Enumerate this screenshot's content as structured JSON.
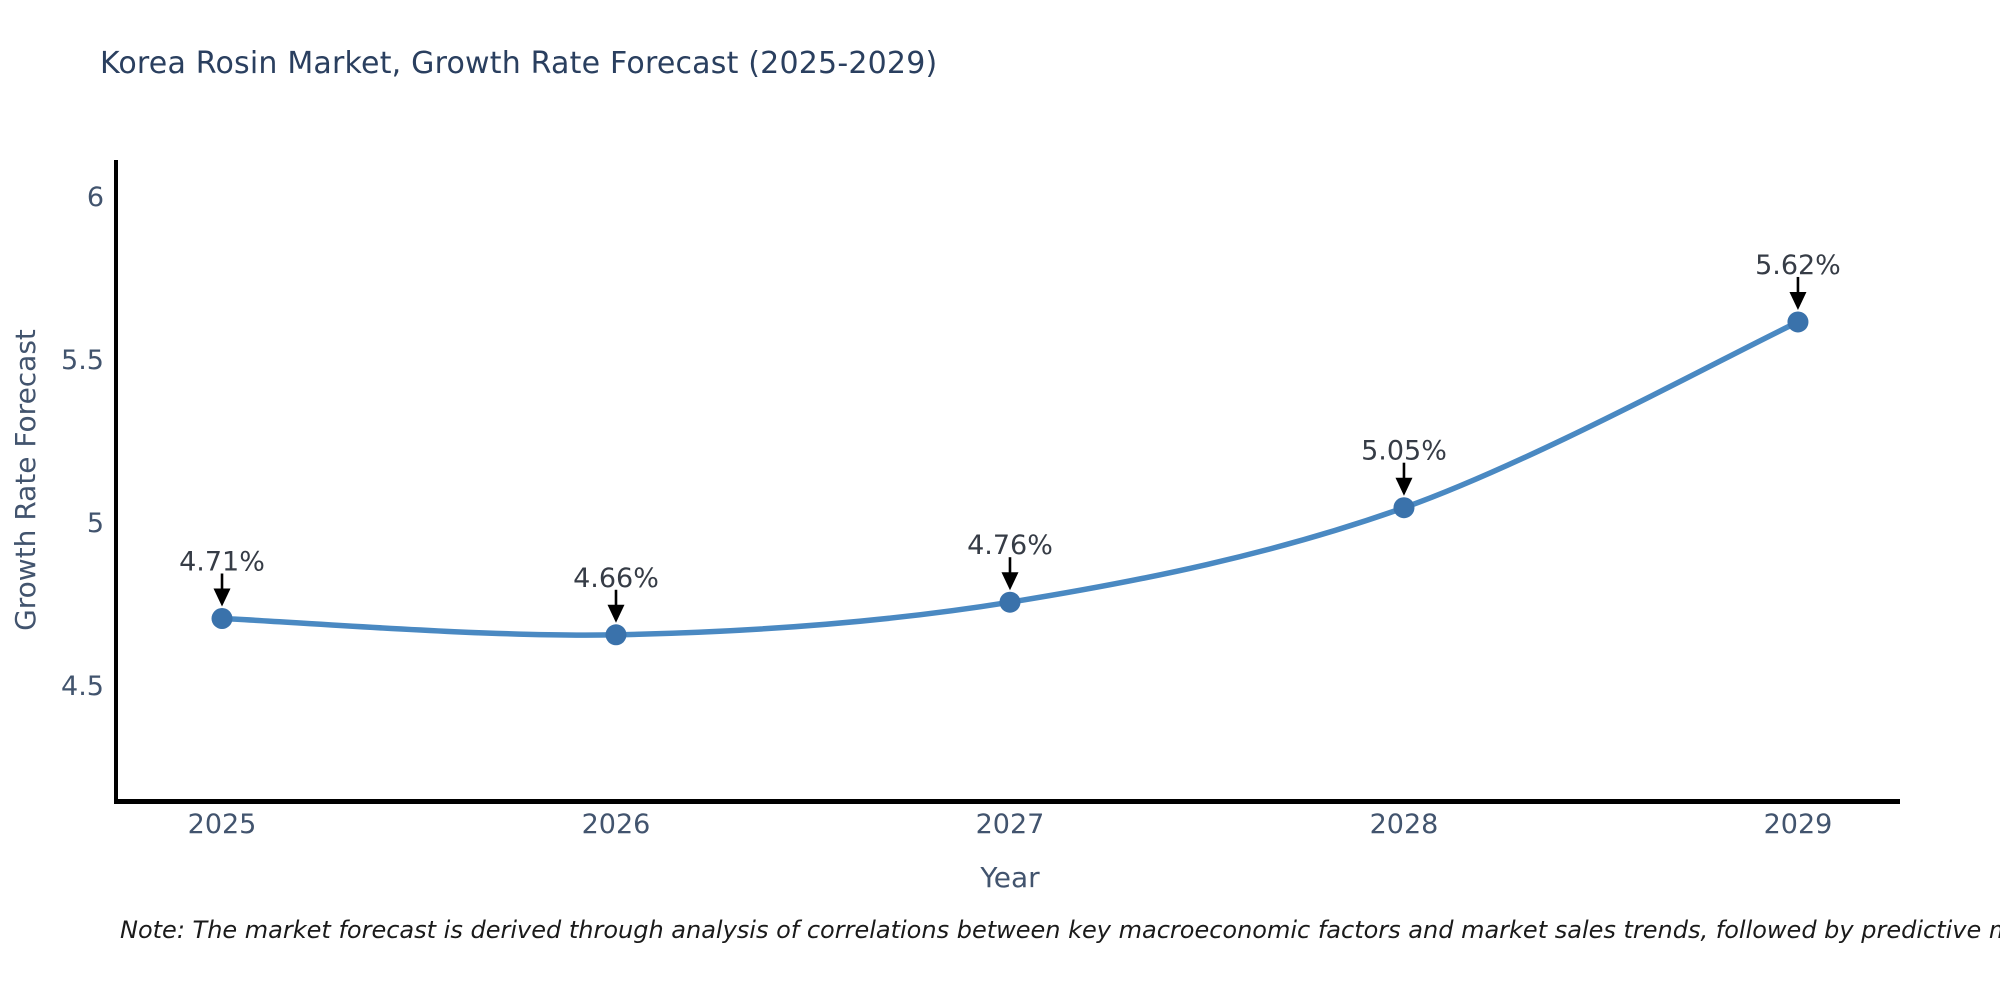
{
  "title": "Korea Rosin Market, Growth Rate Forecast (2025-2029)",
  "note": "Note: The market forecast is derived through analysis of correlations between key macroeconomic factors and market sales trends, followed by predictive modeling to project future sales",
  "chart_data": {
    "type": "line",
    "title": "Korea Rosin Market, Growth Rate Forecast (2025-2029)",
    "xlabel": "Year",
    "ylabel": "Growth Rate Forecast",
    "x": [
      2025,
      2026,
      2027,
      2028,
      2029
    ],
    "values": [
      4.71,
      4.66,
      4.76,
      5.05,
      5.62
    ],
    "point_labels": [
      "4.71%",
      "4.66%",
      "4.76%",
      "5.05%",
      "5.62%"
    ],
    "xticks": [
      "2025",
      "2026",
      "2027",
      "2028",
      "2029"
    ],
    "yticks": [
      "4.5",
      "5",
      "5.5",
      "6"
    ],
    "ytick_values": [
      4.5,
      5.0,
      5.5,
      6.0
    ],
    "xlim": [
      2024.736,
      2029.259
    ],
    "ylim": [
      4.153,
      6.117
    ],
    "line_shape": "spline",
    "grid": false,
    "legend_position": "none",
    "markers": true,
    "annotations_have_arrows": true,
    "colors": {
      "line": "#4a89c2",
      "marker": "#3a72ab",
      "axis": "#000000",
      "tick_text": "#42546e",
      "title_text": "#2a3f5f",
      "annotation_text": "#363c46",
      "arrow": "#000000",
      "background": "#ffffff"
    }
  }
}
